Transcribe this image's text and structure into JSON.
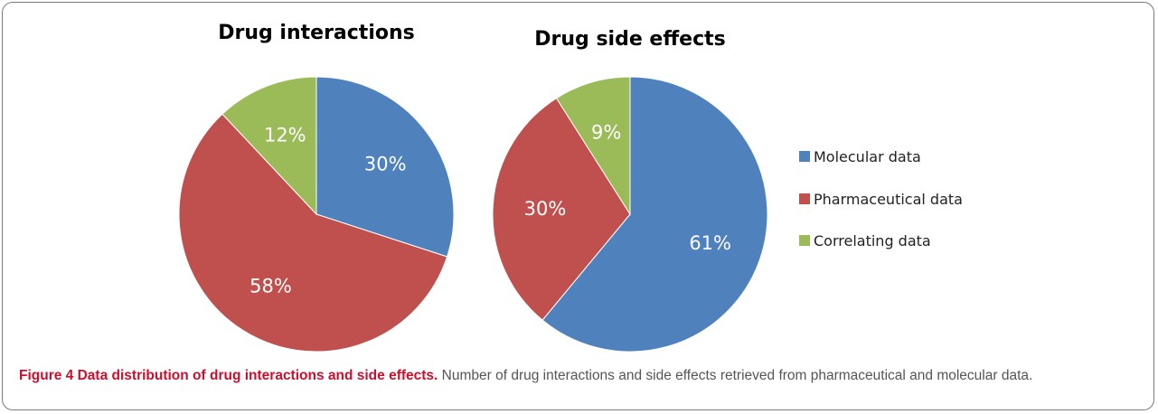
{
  "chart_data": [
    {
      "type": "pie",
      "title": "Drug interactions",
      "slices": [
        {
          "label": "Molecular data",
          "value": 30,
          "display": "30%",
          "color": "#4f81bd"
        },
        {
          "label": "Pharmaceutical data",
          "value": 58,
          "display": "58%",
          "color": "#c0504d"
        },
        {
          "label": "Correlating data",
          "value": 12,
          "display": "12%",
          "color": "#9bbb59"
        }
      ]
    },
    {
      "type": "pie",
      "title": "Drug side effects",
      "slices": [
        {
          "label": "Molecular data",
          "value": 61,
          "display": "61%",
          "color": "#4f81bd"
        },
        {
          "label": "Pharmaceutical data",
          "value": 30,
          "display": "30%",
          "color": "#c0504d"
        },
        {
          "label": "Correlating data",
          "value": 9,
          "display": "9%",
          "color": "#9bbb59"
        }
      ]
    }
  ],
  "legend": {
    "placement": "right",
    "items": [
      {
        "label": "Molecular data",
        "color": "#4f81bd"
      },
      {
        "label": "Pharmaceutical data",
        "color": "#c0504d"
      },
      {
        "label": "Correlating data",
        "color": "#9bbb59"
      }
    ]
  },
  "caption": {
    "figure_label": "Figure 4",
    "bold_title": "Data distribution of drug interactions and side effects.",
    "text": "Number of drug interactions and side effects retrieved from pharmaceutical and molecular data."
  }
}
